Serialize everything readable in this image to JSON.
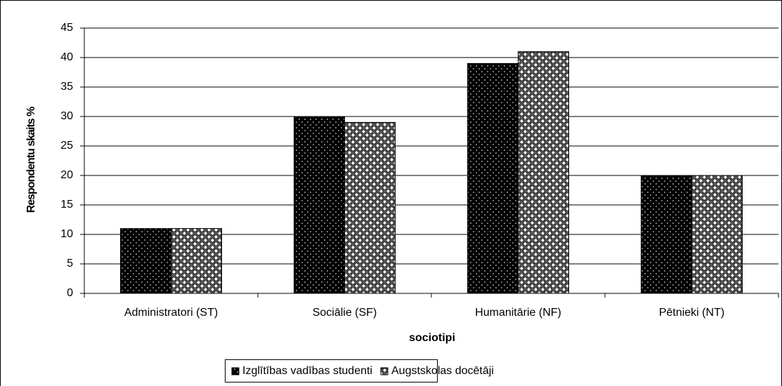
{
  "chart_data": {
    "type": "bar",
    "categories": [
      "Administratori (ST)",
      "Sociālie (SF)",
      "Humanitārie (NF)",
      "Pētnieki (NT)"
    ],
    "series": [
      {
        "name": "Izglītības vadības studenti",
        "color": "#000000",
        "values": [
          11,
          30,
          39,
          20
        ]
      },
      {
        "name": "Augstskolas docētāji",
        "color": "#555555",
        "values": [
          11,
          29,
          41,
          20
        ]
      }
    ],
    "xlabel": "sociotipi",
    "ylabel": "Respondentu skaits %",
    "ylim": [
      0,
      45
    ],
    "yticks": [
      0,
      5,
      10,
      15,
      20,
      25,
      30,
      35,
      40,
      45
    ],
    "grid": true,
    "legend": "bottom"
  }
}
